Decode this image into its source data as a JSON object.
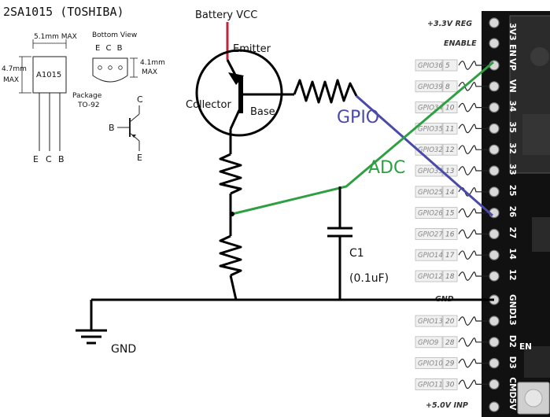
{
  "datasheet": {
    "title": "2SA1015 (TOSHIBA)",
    "width_dim": "5.1mm MAX",
    "height_dim": "4.7mm MAX",
    "part_label": "A1015",
    "bottom_view": "Bottom View",
    "pin_order": "E C B",
    "depth_dim": "4.1mm MAX",
    "package": "Package TO-92",
    "leads": [
      "E",
      "C",
      "B"
    ],
    "symbol_base": "B",
    "symbol_collector": "C",
    "symbol_emitter": "E"
  },
  "circuit": {
    "supply_label": "Battery VCC",
    "emitter_label": "Emitter",
    "collector_label": "Collector",
    "base_label": "Base",
    "gpio_label": "GPIO",
    "adc_label": "ADC",
    "cap_name": "C1",
    "cap_value": "(0.1uF)",
    "gnd_label": "GND",
    "colors": {
      "vcc_wire": "#c0263a",
      "gpio_wire": "#4a4aa8",
      "adc_wire": "#2ea043",
      "wire": "#000000"
    }
  },
  "board": {
    "top_label": "+3.3V REG",
    "enable_label": "ENABLE",
    "gnd_label": "GND",
    "bottom_label": "+5.0V INP",
    "en_button": "EN",
    "pins": [
      {
        "name": "GPIO36",
        "num": "5",
        "silk": "VP"
      },
      {
        "name": "GPIO39",
        "num": "8",
        "silk": "VN"
      },
      {
        "name": "GPIO34",
        "num": "10",
        "silk": "34"
      },
      {
        "name": "GPIO35",
        "num": "11",
        "silk": "35"
      },
      {
        "name": "GPIO32",
        "num": "12",
        "silk": "32"
      },
      {
        "name": "GPIO33",
        "num": "13",
        "silk": "33"
      },
      {
        "name": "GPIO25",
        "num": "14",
        "silk": "25"
      },
      {
        "name": "GPIO26",
        "num": "15",
        "silk": "26"
      },
      {
        "name": "GPIO27",
        "num": "16",
        "silk": "27"
      },
      {
        "name": "GPIO14",
        "num": "17",
        "silk": "14"
      },
      {
        "name": "GPIO12",
        "num": "18",
        "silk": "12"
      }
    ],
    "pins_lower": [
      {
        "name": "GPIO13",
        "num": "20",
        "silk": "13"
      },
      {
        "name": "GPIO9",
        "num": "28",
        "silk": "D2"
      },
      {
        "name": "GPIO10",
        "num": "29",
        "silk": "D3"
      },
      {
        "name": "GPIO11",
        "num": "30",
        "silk": "CMD"
      }
    ],
    "silk_top": [
      "3V3",
      "EN"
    ],
    "silk_gnd": "GND",
    "silk_bottom": "5V"
  }
}
